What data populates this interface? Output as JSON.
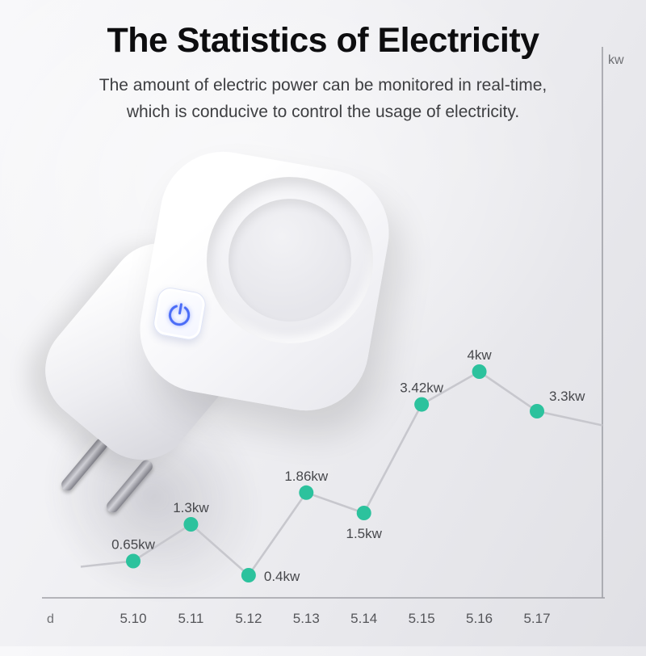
{
  "header": {
    "title": "The Statistics of Electricity",
    "subtitle_line1": "The amount of electric power can be monitored in real-time,",
    "subtitle_line2": "which is conducive to control the usage of electricity."
  },
  "colors": {
    "accent_blue": "#4a6cf7",
    "point_teal": "#2cc29d",
    "line_gray": "#c7c7cd",
    "axis_gray": "#9fa0a6",
    "title_black": "#0d0d0f",
    "text_gray": "#3e3f42",
    "background": "#ededf1"
  },
  "chart_data": {
    "type": "line",
    "title": "",
    "xlabel": "d",
    "ylabel": "kw",
    "categories": [
      "5.10",
      "5.11",
      "5.12",
      "5.13",
      "5.14",
      "5.15",
      "5.16",
      "5.17"
    ],
    "values": [
      0.65,
      1.3,
      0.4,
      1.86,
      1.5,
      3.42,
      4,
      3.3
    ],
    "point_labels": [
      "0.65kw",
      "1.3kw",
      "0.4kw",
      "1.86kw",
      "1.5kw",
      "3.42kw",
      "4kw",
      "3.3kw"
    ],
    "label_positions": [
      "above",
      "above",
      "right",
      "above",
      "below",
      "above",
      "above",
      "right-above"
    ],
    "lead_in_value": 0.55,
    "lead_out_value": 3.05,
    "ylim": [
      0,
      4.8
    ],
    "grid": false,
    "legend": "none",
    "marker": "circle",
    "line_color": "#c7c7cd",
    "point_color": "#2cc29d"
  }
}
